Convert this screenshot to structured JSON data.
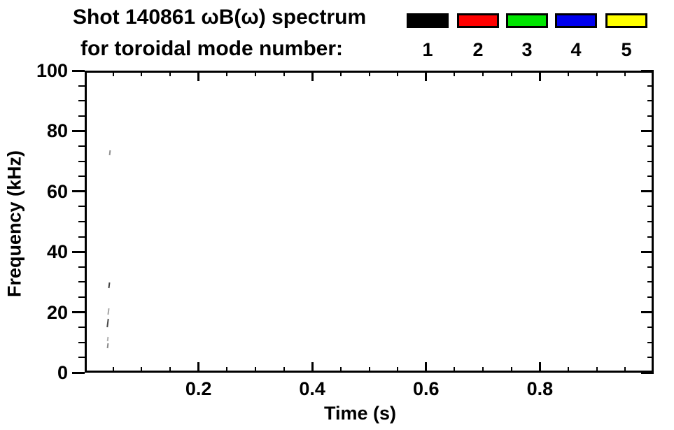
{
  "header": {
    "title_line1": "Shot 140861 ωB(ω) spectrum",
    "title_line2": "for toroidal mode number:"
  },
  "legend": {
    "entries": [
      {
        "label": "1",
        "color": "#000000"
      },
      {
        "label": "2",
        "color": "#ff0000"
      },
      {
        "label": "3",
        "color": "#00e400"
      },
      {
        "label": "4",
        "color": "#0000ee"
      },
      {
        "label": "5",
        "color": "#ffff00"
      }
    ]
  },
  "chart_data": {
    "type": "scatter",
    "title": "Shot 140861 ωB(ω) spectrum for toroidal mode number:",
    "xlabel": "Time (s)",
    "ylabel": "Frequency (kHz)",
    "xlim": [
      0,
      1.0
    ],
    "ylim": [
      0,
      100
    ],
    "x_major_ticks": [
      0.2,
      0.4,
      0.6,
      0.8
    ],
    "x_tick_labels": [
      "0.2",
      "0.4",
      "0.6",
      "0.8"
    ],
    "x_minor_step": 0.05,
    "y_major_ticks": [
      0,
      20,
      40,
      60,
      80,
      100
    ],
    "y_tick_labels": [
      "0",
      "20",
      "40",
      "60",
      "80",
      "100"
    ],
    "y_minor_step": 5,
    "grid": false,
    "frame_color": "#000000",
    "legend_position": "top-outside-right",
    "series": [
      {
        "name": "1",
        "color": "#000000",
        "points": [
          {
            "t": 0.044,
            "f": 72.7,
            "f_low": 71.9,
            "f_high": 73.5,
            "shade": "#909090"
          },
          {
            "t": 0.043,
            "f": 28.9,
            "f_low": 28.0,
            "f_high": 29.8,
            "shade": "#3f3f3f"
          },
          {
            "t": 0.042,
            "f": 20.4,
            "f_low": 19.4,
            "f_high": 21.4,
            "shade": "#a5a5a5"
          },
          {
            "t": 0.041,
            "f": 16.6,
            "f_low": 15.2,
            "f_high": 17.9,
            "shade": "#4a4a4a"
          },
          {
            "t": 0.04,
            "f": 10.9,
            "f_low": 10.2,
            "f_high": 11.7,
            "shade": "#b2b2b2"
          },
          {
            "t": 0.041,
            "f": 9.0,
            "f_low": 8.2,
            "f_high": 9.8,
            "shade": "#8a8a8a"
          }
        ]
      },
      {
        "name": "2",
        "color": "#ff0000",
        "points": []
      },
      {
        "name": "3",
        "color": "#00e400",
        "points": []
      },
      {
        "name": "4",
        "color": "#0000ee",
        "points": []
      },
      {
        "name": "5",
        "color": "#ffff00",
        "points": []
      }
    ]
  }
}
